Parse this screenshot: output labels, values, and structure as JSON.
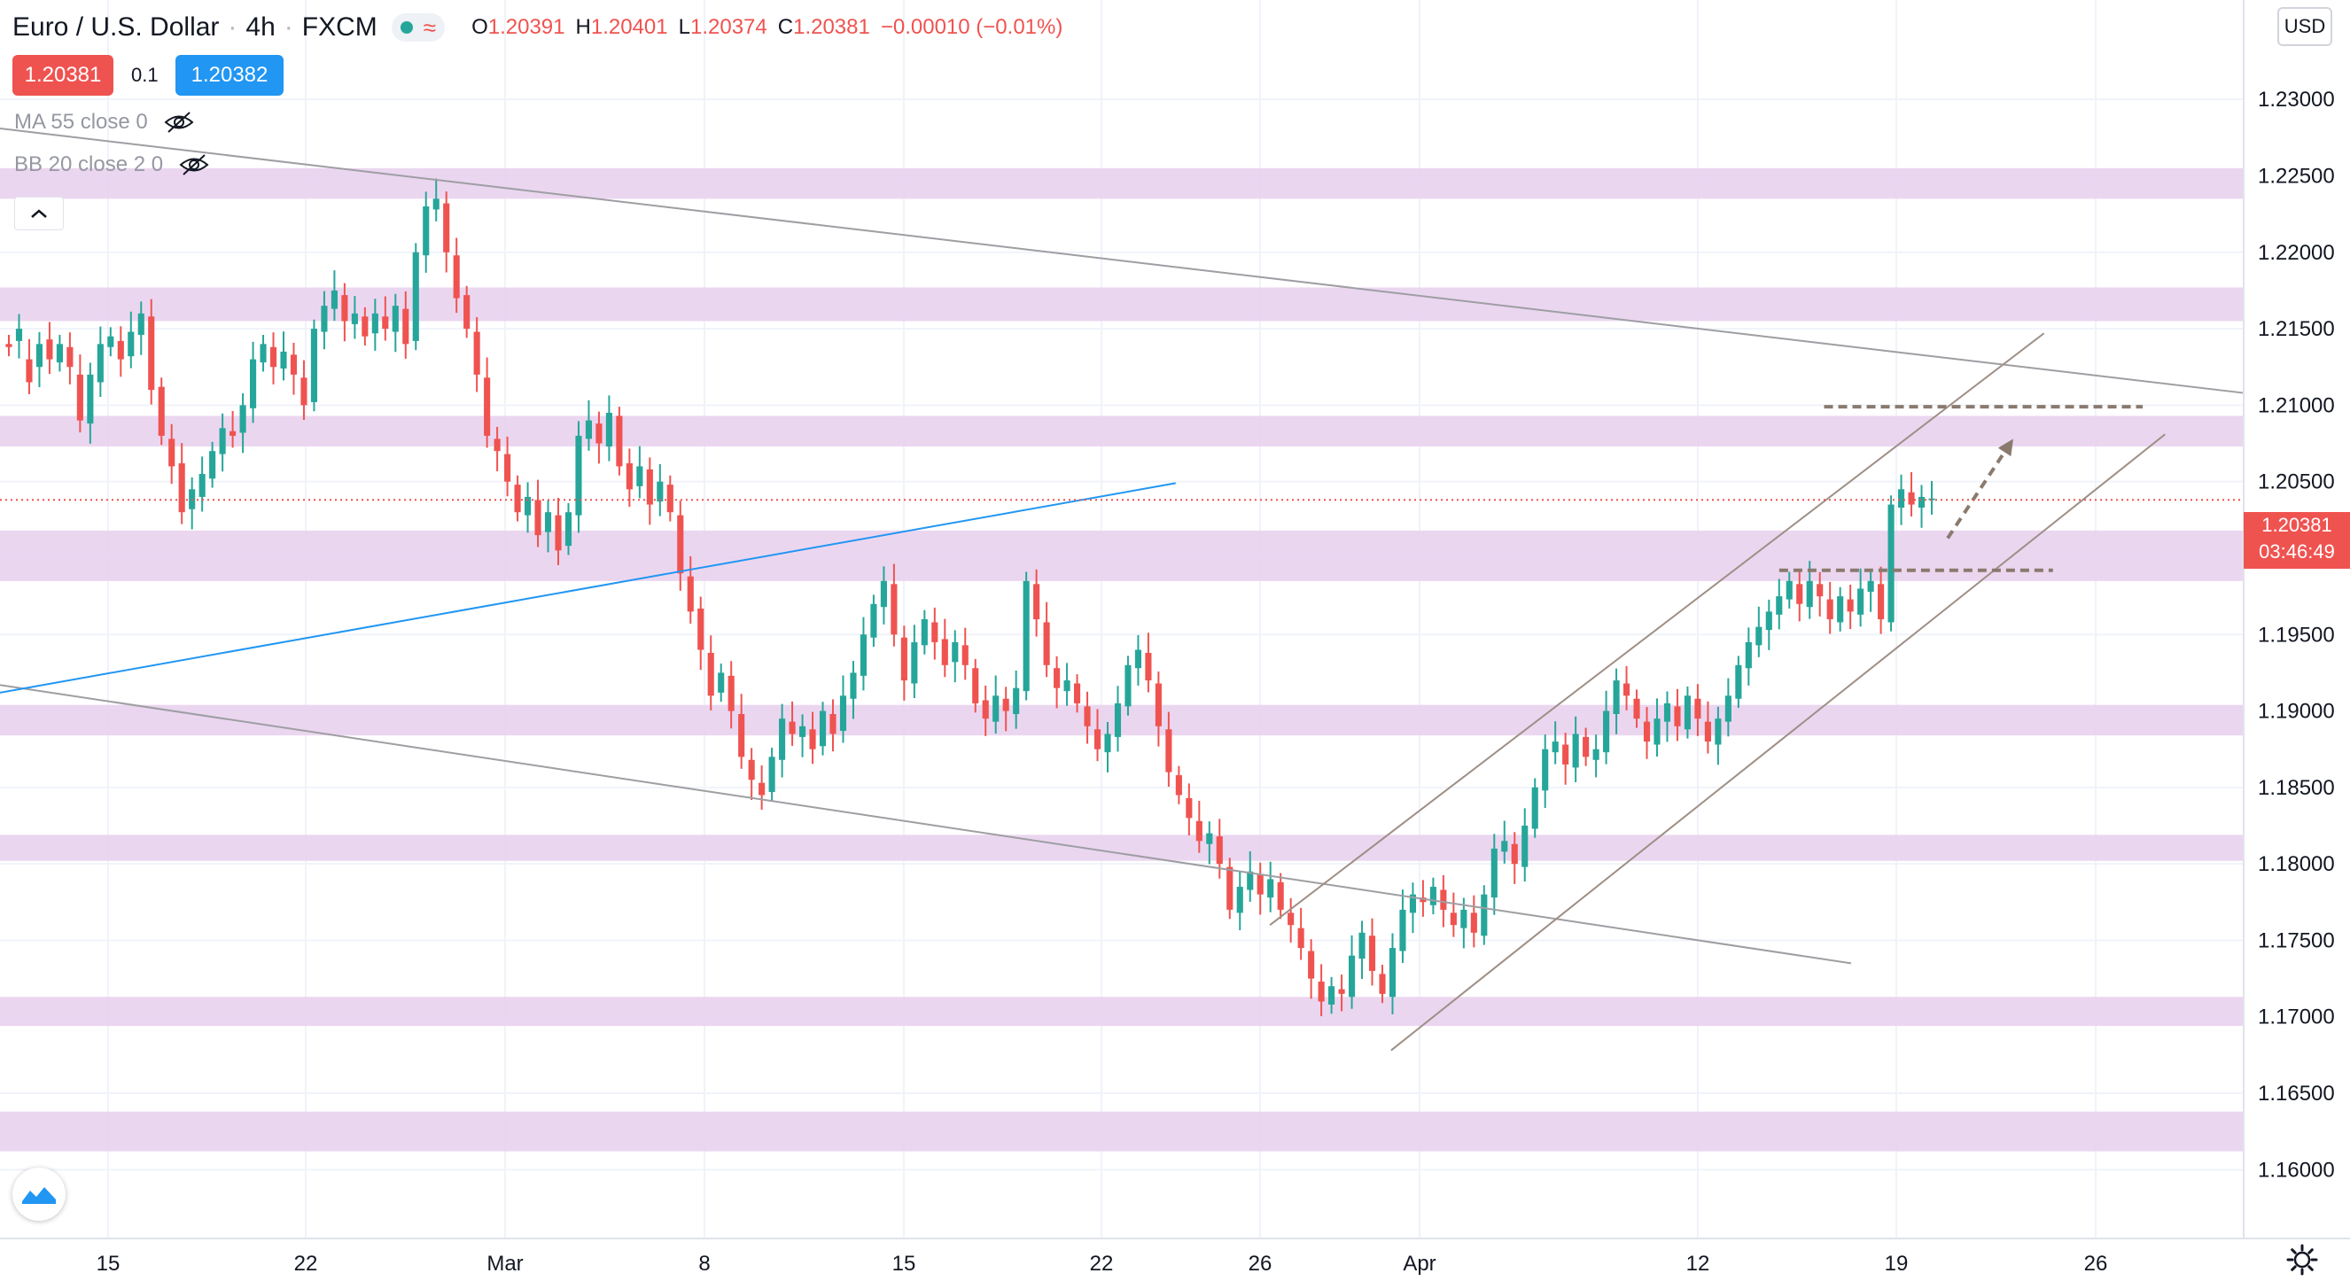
{
  "header": {
    "symbol": "Euro / U.S. Dollar",
    "interval": "4h",
    "exchange": "FXCM",
    "separator": "·",
    "ohlc": [
      {
        "k": "O",
        "v": "1.20391"
      },
      {
        "k": "H",
        "v": "1.20401"
      },
      {
        "k": "L",
        "v": "1.20374"
      },
      {
        "k": "C",
        "v": "1.20381"
      },
      {
        "k": "",
        "v": "−0.00010 (−0.01%)"
      }
    ]
  },
  "trade": {
    "sell_price": "1.20381",
    "spread": "0.1",
    "buy_price": "1.20382"
  },
  "indicators": [
    {
      "label": "MA 55 close 0"
    },
    {
      "label": "BB 20 close 2 0"
    }
  ],
  "currency_button": "USD",
  "last_price": {
    "price": "1.20381",
    "countdown": "03:46:49"
  },
  "colors": {
    "up": "#26a69a",
    "down": "#ef5350",
    "zone": "#e9d1ee",
    "channel": "#9e8f86",
    "downtrend": "#9e9ea3",
    "blue_line": "#2196f3",
    "arrow": "#8a7a6e"
  },
  "chart_data": {
    "type": "candlestick",
    "y_axis": {
      "ticks": [
        "1.23000",
        "1.22500",
        "1.22000",
        "1.21500",
        "1.21000",
        "1.20500",
        "1.20000",
        "1.19500",
        "1.19000",
        "1.18500",
        "1.18000",
        "1.17500",
        "1.17000",
        "1.16500",
        "1.16000"
      ],
      "tick_values": [
        1.23,
        1.225,
        1.22,
        1.215,
        1.21,
        1.205,
        1.2,
        1.195,
        1.19,
        1.185,
        1.18,
        1.175,
        1.17,
        1.165,
        1.16
      ]
    },
    "x_axis": {
      "ticks": [
        "15",
        "22",
        "Mar",
        "8",
        "15",
        "22",
        "26",
        "Apr",
        "12",
        "19",
        "26"
      ]
    },
    "ylim": [
      1.1555,
      1.2365
    ],
    "support_resistance_zones": [
      [
        1.2235,
        1.2255
      ],
      [
        1.2155,
        1.2177
      ],
      [
        1.2073,
        1.2093
      ],
      [
        1.1985,
        1.2018
      ],
      [
        1.1884,
        1.1904
      ],
      [
        1.1802,
        1.1819
      ],
      [
        1.1694,
        1.1713
      ],
      [
        1.1612,
        1.1638
      ]
    ],
    "price_path": [
      [
        1.214,
        1.2138
      ],
      [
        1.2142,
        1.215
      ],
      [
        1.213,
        1.2115
      ],
      [
        1.2125,
        1.214
      ],
      [
        1.2143,
        1.213
      ],
      [
        1.2128,
        1.214
      ],
      [
        1.2138,
        1.2125
      ],
      [
        1.212,
        1.209
      ],
      [
        1.2088,
        1.212
      ],
      [
        1.2115,
        1.214
      ],
      [
        1.2138,
        1.2145
      ],
      [
        1.2142,
        1.213
      ],
      [
        1.2132,
        1.2148
      ],
      [
        1.2146,
        1.216
      ],
      [
        1.2158,
        1.211
      ],
      [
        1.2112,
        1.208
      ],
      [
        1.2078,
        1.206
      ],
      [
        1.2062,
        1.203
      ],
      [
        1.2032,
        1.2045
      ],
      [
        1.204,
        1.2055
      ],
      [
        1.2052,
        1.207
      ],
      [
        1.2068,
        1.2085
      ],
      [
        1.2083,
        1.208
      ],
      [
        1.2082,
        1.21
      ],
      [
        1.2098,
        1.213
      ],
      [
        1.2128,
        1.214
      ],
      [
        1.2138,
        1.2125
      ],
      [
        1.2124,
        1.2135
      ],
      [
        1.2133,
        1.212
      ],
      [
        1.2118,
        1.21
      ],
      [
        1.2102,
        1.215
      ],
      [
        1.2148,
        1.2165
      ],
      [
        1.2163,
        1.2175
      ],
      [
        1.2172,
        1.2155
      ],
      [
        1.2153,
        1.216
      ],
      [
        1.2158,
        1.2145
      ],
      [
        1.2147,
        1.216
      ],
      [
        1.2158,
        1.215
      ],
      [
        1.2148,
        1.2165
      ],
      [
        1.2163,
        1.214
      ],
      [
        1.2142,
        1.22
      ],
      [
        1.2198,
        1.223
      ],
      [
        1.2228,
        1.2235
      ],
      [
        1.2232,
        1.22
      ],
      [
        1.2198,
        1.217
      ],
      [
        1.2172,
        1.215
      ],
      [
        1.2148,
        1.212
      ],
      [
        1.2118,
        1.208
      ],
      [
        1.2078,
        1.207
      ],
      [
        1.2068,
        1.205
      ],
      [
        1.2048,
        1.203
      ],
      [
        1.2028,
        1.204
      ],
      [
        1.2038,
        1.2015
      ],
      [
        1.2017,
        1.203
      ],
      [
        1.2028,
        1.2005
      ],
      [
        1.2008,
        1.203
      ],
      [
        1.2028,
        1.208
      ],
      [
        1.2078,
        1.209
      ],
      [
        1.2088,
        1.2075
      ],
      [
        1.2073,
        1.2095
      ],
      [
        1.2093,
        1.206
      ],
      [
        1.2062,
        1.2045
      ],
      [
        1.2047,
        1.206
      ],
      [
        1.2058,
        1.2035
      ],
      [
        1.2037,
        1.205
      ],
      [
        1.2048,
        1.203
      ],
      [
        1.2028,
        1.199
      ],
      [
        1.1988,
        1.1965
      ],
      [
        1.1967,
        1.194
      ],
      [
        1.1938,
        1.191
      ],
      [
        1.1912,
        1.1925
      ],
      [
        1.1923,
        1.19
      ],
      [
        1.1898,
        1.187
      ],
      [
        1.1868,
        1.1855
      ],
      [
        1.1853,
        1.1845
      ],
      [
        1.1847,
        1.187
      ],
      [
        1.1868,
        1.1895
      ],
      [
        1.1893,
        1.1885
      ],
      [
        1.1883,
        1.189
      ],
      [
        1.1888,
        1.1875
      ],
      [
        1.1877,
        1.19
      ],
      [
        1.1898,
        1.1885
      ],
      [
        1.1887,
        1.191
      ],
      [
        1.1908,
        1.1925
      ],
      [
        1.1923,
        1.195
      ],
      [
        1.1948,
        1.197
      ],
      [
        1.1968,
        1.1985
      ],
      [
        1.1983,
        1.195
      ],
      [
        1.1948,
        1.192
      ],
      [
        1.1918,
        1.1945
      ],
      [
        1.1943,
        1.196
      ],
      [
        1.1958,
        1.1945
      ],
      [
        1.1947,
        1.193
      ],
      [
        1.1932,
        1.1945
      ],
      [
        1.1943,
        1.193
      ],
      [
        1.1928,
        1.1905
      ],
      [
        1.1907,
        1.1895
      ],
      [
        1.1893,
        1.191
      ],
      [
        1.1908,
        1.19
      ],
      [
        1.1898,
        1.1915
      ],
      [
        1.1913,
        1.1985
      ],
      [
        1.1983,
        1.196
      ],
      [
        1.1958,
        1.193
      ],
      [
        1.1928,
        1.1915
      ],
      [
        1.1913,
        1.192
      ],
      [
        1.1918,
        1.1905
      ],
      [
        1.1903,
        1.189
      ],
      [
        1.1888,
        1.1875
      ],
      [
        1.1873,
        1.1885
      ],
      [
        1.1883,
        1.1905
      ],
      [
        1.1903,
        1.193
      ],
      [
        1.1928,
        1.194
      ],
      [
        1.1938,
        1.192
      ],
      [
        1.1918,
        1.189
      ],
      [
        1.1888,
        1.186
      ],
      [
        1.1858,
        1.1845
      ],
      [
        1.1843,
        1.183
      ],
      [
        1.1828,
        1.1815
      ],
      [
        1.1813,
        1.182
      ],
      [
        1.1818,
        1.18
      ],
      [
        1.1798,
        1.177
      ],
      [
        1.1768,
        1.1785
      ],
      [
        1.1783,
        1.1795
      ],
      [
        1.1793,
        1.178
      ],
      [
        1.1778,
        1.179
      ],
      [
        1.1788,
        1.177
      ],
      [
        1.1768,
        1.176
      ],
      [
        1.1758,
        1.1745
      ],
      [
        1.1743,
        1.1725
      ],
      [
        1.1723,
        1.171
      ],
      [
        1.1708,
        1.172
      ],
      [
        1.1718,
        1.1715
      ],
      [
        1.1713,
        1.174
      ],
      [
        1.1738,
        1.1755
      ],
      [
        1.1753,
        1.173
      ],
      [
        1.1728,
        1.1715
      ],
      [
        1.1713,
        1.1745
      ],
      [
        1.1743,
        1.177
      ],
      [
        1.1768,
        1.178
      ],
      [
        1.1778,
        1.1775
      ],
      [
        1.1773,
        1.1785
      ],
      [
        1.1783,
        1.177
      ],
      [
        1.1768,
        1.176
      ],
      [
        1.1758,
        1.177
      ],
      [
        1.1768,
        1.1755
      ],
      [
        1.1753,
        1.178
      ],
      [
        1.1778,
        1.181
      ],
      [
        1.1808,
        1.1815
      ],
      [
        1.1813,
        1.18
      ],
      [
        1.1798,
        1.1825
      ],
      [
        1.1823,
        1.185
      ],
      [
        1.1848,
        1.1875
      ],
      [
        1.1873,
        1.188
      ],
      [
        1.1878,
        1.1865
      ],
      [
        1.1863,
        1.1885
      ],
      [
        1.1883,
        1.187
      ],
      [
        1.1868,
        1.1875
      ],
      [
        1.1873,
        1.19
      ],
      [
        1.1898,
        1.192
      ],
      [
        1.1918,
        1.191
      ],
      [
        1.1908,
        1.1895
      ],
      [
        1.1893,
        1.188
      ],
      [
        1.1878,
        1.1895
      ],
      [
        1.1893,
        1.1905
      ],
      [
        1.1903,
        1.189
      ],
      [
        1.1888,
        1.191
      ],
      [
        1.1908,
        1.1895
      ],
      [
        1.1893,
        1.188
      ],
      [
        1.1878,
        1.1895
      ],
      [
        1.1893,
        1.191
      ],
      [
        1.1908,
        1.193
      ],
      [
        1.1928,
        1.1945
      ],
      [
        1.1943,
        1.1955
      ],
      [
        1.1953,
        1.1965
      ],
      [
        1.1963,
        1.1975
      ],
      [
        1.1973,
        1.1985
      ],
      [
        1.1983,
        1.197
      ],
      [
        1.1968,
        1.1985
      ],
      [
        1.1983,
        1.1975
      ],
      [
        1.1973,
        1.196
      ],
      [
        1.1958,
        1.1975
      ],
      [
        1.1973,
        1.1965
      ],
      [
        1.1963,
        1.198
      ],
      [
        1.1978,
        1.1985
      ],
      [
        1.1983,
        1.196
      ],
      [
        1.1958,
        1.2035
      ],
      [
        1.2033,
        1.2045
      ],
      [
        1.2043,
        1.2035
      ],
      [
        1.2033,
        1.204
      ],
      [
        1.2038,
        1.2039
      ]
    ],
    "lines": [
      {
        "name": "downtrend-upper",
        "from": [
          0,
          1.2281
        ],
        "to": [
          1.0,
          1.2108
        ]
      },
      {
        "name": "downtrend-lower",
        "from": [
          0,
          1.1917
        ],
        "to": [
          0.825,
          1.1735
        ]
      },
      {
        "name": "blue-trend",
        "from": [
          0,
          1.1912
        ],
        "to": [
          0.524,
          1.2049
        ]
      },
      {
        "name": "channel-upper",
        "from": [
          0.566,
          1.176
        ],
        "to": [
          0.911,
          1.2147
        ]
      },
      {
        "name": "channel-lower",
        "from": [
          0.62,
          1.1678
        ],
        "to": [
          0.965,
          1.2081
        ]
      },
      {
        "name": "resistance-dashed",
        "from": [
          0.813,
          1.2099
        ],
        "to": [
          0.955,
          1.2099
        ]
      },
      {
        "name": "support-dashed",
        "from": [
          0.793,
          1.1992
        ],
        "to": [
          0.915,
          1.1992
        ]
      }
    ],
    "last_price_line": 1.20381
  }
}
